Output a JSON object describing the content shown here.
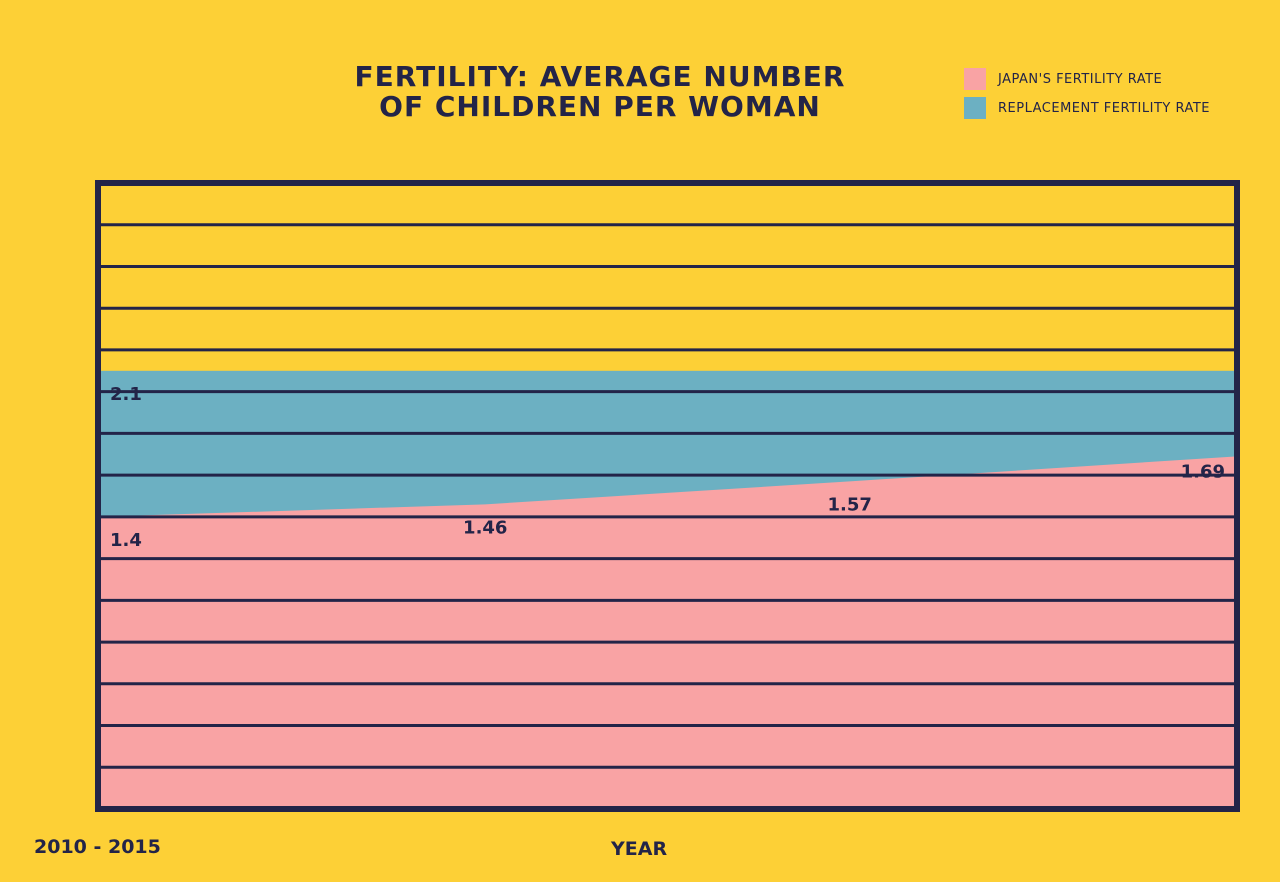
{
  "chart_data": {
    "type": "area",
    "title_lines": [
      "FERTILITY: AVERAGE NUMBER",
      "OF CHILDREN PER WOMAN"
    ],
    "xlabel": "YEAR",
    "range_label": "2010 - 2015",
    "x_range": [
      2010,
      2015
    ],
    "ylim": [
      0,
      3
    ],
    "legend": [
      {
        "name": "JAPAN'S FERTILITY RATE",
        "color": "#f9a3a4"
      },
      {
        "name": "REPLACEMENT FERTILITY RATE",
        "color": "#6cb0c2"
      }
    ],
    "series": [
      {
        "name": "REPLACEMENT FERTILITY RATE",
        "x": [
          2010,
          2015
        ],
        "values": [
          2.1,
          2.1
        ],
        "labels": [
          {
            "x": 2010,
            "value": 2.1,
            "text": "2.1"
          }
        ]
      },
      {
        "name": "JAPAN'S FERTILITY RATE",
        "x": [
          2010,
          2011.7,
          2013.3,
          2015
        ],
        "values": [
          1.4,
          1.46,
          1.57,
          1.69
        ],
        "labels": [
          {
            "x": 2010,
            "value": 1.4,
            "text": "1.4"
          },
          {
            "x": 2011.7,
            "value": 1.46,
            "text": "1.46"
          },
          {
            "x": 2013.3,
            "value": 1.57,
            "text": "1.57"
          },
          {
            "x": 2015,
            "value": 1.69,
            "text": "1.69"
          }
        ]
      }
    ],
    "grid_step": 0.2
  },
  "colors": {
    "background": "#fdd036",
    "ink": "#232448",
    "japan": "#f9a3a4",
    "replacement": "#6cb0c2"
  }
}
